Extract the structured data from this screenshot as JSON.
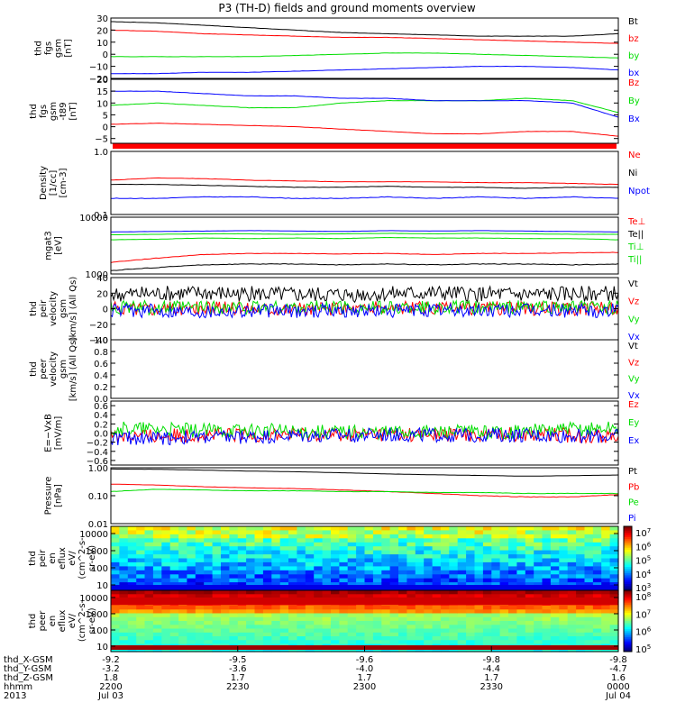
{
  "title": "P3 (TH-D) fields and ground moments overview",
  "colors": {
    "black": "#000000",
    "red": "#ff0000",
    "green": "#00dd00",
    "blue": "#0000ff"
  },
  "chart_data": [
    {
      "type": "line",
      "panel_label": [
        "thd",
        "fgs",
        "gsm",
        "[nT]"
      ],
      "ylim": [
        -20,
        30
      ],
      "yticks": [
        "30",
        "20",
        "10",
        "0",
        "−10",
        "−20"
      ],
      "series": [
        {
          "name": "Bt",
          "color": "black",
          "values": [
            27,
            26,
            24,
            22,
            20,
            18,
            17,
            16,
            15,
            15,
            15,
            17
          ]
        },
        {
          "name": "bz",
          "color": "red",
          "values": [
            20,
            19,
            17,
            16,
            15,
            14,
            14,
            13,
            12,
            11,
            10,
            9
          ]
        },
        {
          "name": "by",
          "color": "green",
          "values": [
            -2,
            -2,
            -2,
            -2,
            -1,
            0,
            1,
            1,
            0,
            -1,
            -2,
            -3
          ]
        },
        {
          "name": "bx",
          "color": "blue",
          "values": [
            -16,
            -16,
            -15,
            -15,
            -14,
            -13,
            -12,
            -11,
            -10,
            -10,
            -11,
            -13
          ]
        }
      ]
    },
    {
      "type": "line",
      "panel_label": [
        "thd",
        "fgs",
        "gsm",
        "-t89",
        "[nT]"
      ],
      "ylim": [
        -7,
        20
      ],
      "yticks": [
        "20",
        "15",
        "10",
        "5",
        "0",
        "−5"
      ],
      "series": [
        {
          "name": "Bz",
          "color": "red",
          "values": [
            1,
            1.5,
            1,
            0.5,
            0,
            -1,
            -2,
            -3,
            -3,
            -2,
            -2,
            -4
          ]
        },
        {
          "name": "By",
          "color": "green",
          "values": [
            9,
            10,
            9,
            8,
            8,
            10,
            11,
            11,
            11,
            12,
            11,
            6
          ]
        },
        {
          "name": "Bx",
          "color": "blue",
          "values": [
            15,
            15,
            14,
            13,
            13,
            12,
            12,
            11,
            11,
            11,
            10,
            4
          ]
        }
      ]
    },
    {
      "type": "line",
      "scale": "log",
      "panel_label": [
        "Density",
        "[1/cc]",
        "[cm-3]"
      ],
      "ylim": [
        0.1,
        1.0
      ],
      "yticks": [
        "1.0",
        "0.1"
      ],
      "series": [
        {
          "name": "Ne",
          "color": "red",
          "values": [
            0.35,
            0.38,
            0.37,
            0.35,
            0.34,
            0.33,
            0.33,
            0.33,
            0.32,
            0.32,
            0.31,
            0.3
          ]
        },
        {
          "name": "Ni",
          "color": "black",
          "values": [
            0.3,
            0.3,
            0.29,
            0.28,
            0.27,
            0.27,
            0.28,
            0.27,
            0.27,
            0.26,
            0.27,
            0.27
          ]
        },
        {
          "name": "Npot",
          "color": "blue",
          "values": [
            0.18,
            0.18,
            0.19,
            0.19,
            0.18,
            0.18,
            0.19,
            0.18,
            0.19,
            0.18,
            0.19,
            0.18
          ]
        }
      ]
    },
    {
      "type": "line",
      "scale": "log",
      "panel_label": [
        "mgat3",
        "[eV]"
      ],
      "ylim": [
        1000,
        10000
      ],
      "yticks": [
        "10000",
        "1000"
      ],
      "series": [
        {
          "name": "Te⊥",
          "color": "red",
          "values": [
            1600,
            1900,
            2200,
            2300,
            2300,
            2250,
            2300,
            2200,
            2300,
            2300,
            2350,
            2400
          ]
        },
        {
          "name": "Te||",
          "color": "black",
          "values": [
            1150,
            1300,
            1450,
            1500,
            1500,
            1450,
            1500,
            1450,
            1500,
            1500,
            1450,
            1500
          ]
        },
        {
          "name": "Ti⊥",
          "color": "green",
          "values": [
            4000,
            4100,
            4300,
            4200,
            4300,
            4200,
            4400,
            4300,
            4300,
            4200,
            4200,
            4000
          ]
        },
        {
          "name": "Ti||",
          "color": "green",
          "values": [
            4900,
            5000,
            5100,
            5100,
            5000,
            5100,
            5200,
            5100,
            5200,
            5100,
            5000,
            5000
          ]
        },
        {
          "name": "",
          "color": "blue",
          "values": [
            5500,
            5600,
            5700,
            5800,
            5700,
            5600,
            5800,
            5700,
            5800,
            5700,
            5600,
            5500
          ]
        }
      ]
    },
    {
      "type": "line",
      "panel_label": [
        "thd",
        "peir",
        "velocity",
        "gsm",
        "[km/s] (All Qs)"
      ],
      "ylim": [
        -40,
        40
      ],
      "yticks": [
        "40",
        "20",
        "0",
        "−20",
        "−40"
      ],
      "series": [
        {
          "name": "Vt",
          "color": "black",
          "values": [
            18,
            19,
            20,
            19,
            18,
            18,
            19,
            20,
            19,
            18,
            19,
            20
          ]
        },
        {
          "name": "Vz",
          "color": "red",
          "values": [
            0,
            1,
            0,
            1,
            0,
            0,
            1,
            0,
            1,
            0,
            0,
            1
          ]
        },
        {
          "name": "Vy",
          "color": "green",
          "values": [
            2,
            1,
            2,
            1,
            2,
            2,
            1,
            2,
            1,
            2,
            1,
            2
          ]
        },
        {
          "name": "Vx",
          "color": "blue",
          "values": [
            -3,
            -2,
            -3,
            -2,
            -3,
            -2,
            -3,
            -2,
            -3,
            -2,
            -3,
            -2
          ]
        }
      ]
    },
    {
      "type": "line",
      "panel_label": [
        "thd",
        "peer",
        "velocity",
        "gsm",
        "[km/s] (All Qs)"
      ],
      "ylim": [
        0,
        1.0
      ],
      "yticks": [
        "1.0",
        "0.8",
        "0.6",
        "0.4",
        "0.2",
        "0.0"
      ],
      "series": [
        {
          "name": "Vt",
          "color": "black",
          "values": []
        },
        {
          "name": "Vz",
          "color": "red",
          "values": []
        },
        {
          "name": "Vy",
          "color": "green",
          "values": []
        },
        {
          "name": "Vx",
          "color": "blue",
          "values": []
        }
      ]
    },
    {
      "type": "line",
      "panel_label": [
        "E=−VxB",
        "[mV/m]"
      ],
      "ylim": [
        -0.7,
        0.7
      ],
      "yticks": [
        "0.6",
        "0.4",
        "0.2",
        "0.0",
        "−0.2",
        "−0.4",
        "−0.6"
      ],
      "series": [
        {
          "name": "Ez",
          "color": "red",
          "values": [
            -0.05,
            -0.07,
            -0.03,
            -0.05,
            -0.02,
            -0.03,
            -0.02,
            -0.04,
            -0.03,
            -0.02,
            -0.05,
            -0.06
          ]
        },
        {
          "name": "Ey",
          "color": "green",
          "values": [
            0.1,
            0.08,
            0.05,
            0.06,
            0.04,
            0.03,
            0.02,
            0.03,
            0.02,
            0.04,
            0.08,
            0.12
          ]
        },
        {
          "name": "Ex",
          "color": "blue",
          "values": [
            -0.12,
            -0.1,
            -0.09,
            -0.08,
            -0.06,
            -0.05,
            -0.04,
            -0.05,
            -0.04,
            -0.05,
            -0.06,
            -0.08
          ]
        }
      ]
    },
    {
      "type": "line",
      "scale": "log",
      "panel_label": [
        "Pressure",
        "[nPa]"
      ],
      "ylim": [
        0.01,
        1.0
      ],
      "yticks": [
        "1.00",
        "0.10",
        "0.01"
      ],
      "series": [
        {
          "name": "Pt",
          "color": "black",
          "values": [
            0.9,
            0.88,
            0.82,
            0.76,
            0.72,
            0.66,
            0.6,
            0.56,
            0.53,
            0.5,
            0.52,
            0.55
          ]
        },
        {
          "name": "Pb",
          "color": "red",
          "values": [
            0.26,
            0.24,
            0.21,
            0.19,
            0.18,
            0.16,
            0.14,
            0.12,
            0.1,
            0.09,
            0.09,
            0.11
          ]
        },
        {
          "name": "Pe",
          "color": "green",
          "values": [
            0.14,
            0.17,
            0.16,
            0.15,
            0.15,
            0.14,
            0.14,
            0.13,
            0.13,
            0.12,
            0.12,
            0.12
          ]
        },
        {
          "name": "Pi",
          "color": "blue",
          "values": []
        }
      ]
    },
    {
      "type": "heatmap",
      "panel_label": [
        "thd",
        "peir",
        "en",
        "eflux",
        "eV/",
        "(cm^2-s-",
        "sr-eV)"
      ],
      "ylim": [
        10,
        20000
      ],
      "yticks": [
        "10000",
        "1000",
        "100",
        "10"
      ],
      "colorbar_ticks": [
        "10^7",
        "10^6",
        "10^5",
        "10^4",
        "10^3"
      ]
    },
    {
      "type": "heatmap",
      "panel_label": [
        "thd",
        "peer",
        "en",
        "eflux",
        "eV/",
        "(cm^2-s-",
        "sr-eV)"
      ],
      "ylim": [
        8,
        10000
      ],
      "yticks": [
        "10000",
        "1000",
        "100",
        "10"
      ],
      "colorbar_ticks": [
        "10^8",
        "10^7",
        "10^6",
        "10^5"
      ]
    }
  ],
  "x_axis": {
    "row_labels": [
      "thd_X-GSM",
      "thd_Y-GSM",
      "thd_Z-GSM",
      "hhmm",
      "2013"
    ],
    "ticks": [
      {
        "x": "-9.2",
        "y": "-3.2",
        "z": "1.8",
        "time": "2200",
        "date": "Jul 03"
      },
      {
        "x": "-9.5",
        "y": "-3.6",
        "z": "1.7",
        "time": "2230",
        "date": ""
      },
      {
        "x": "-9.6",
        "y": "-4.0",
        "z": "1.7",
        "time": "2300",
        "date": ""
      },
      {
        "x": "-9.8",
        "y": "-4.4",
        "z": "1.7",
        "time": "2330",
        "date": ""
      },
      {
        "x": "-9.8",
        "y": "-4.7",
        "z": "1.6",
        "time": "0000",
        "date": "Jul 04"
      }
    ]
  }
}
